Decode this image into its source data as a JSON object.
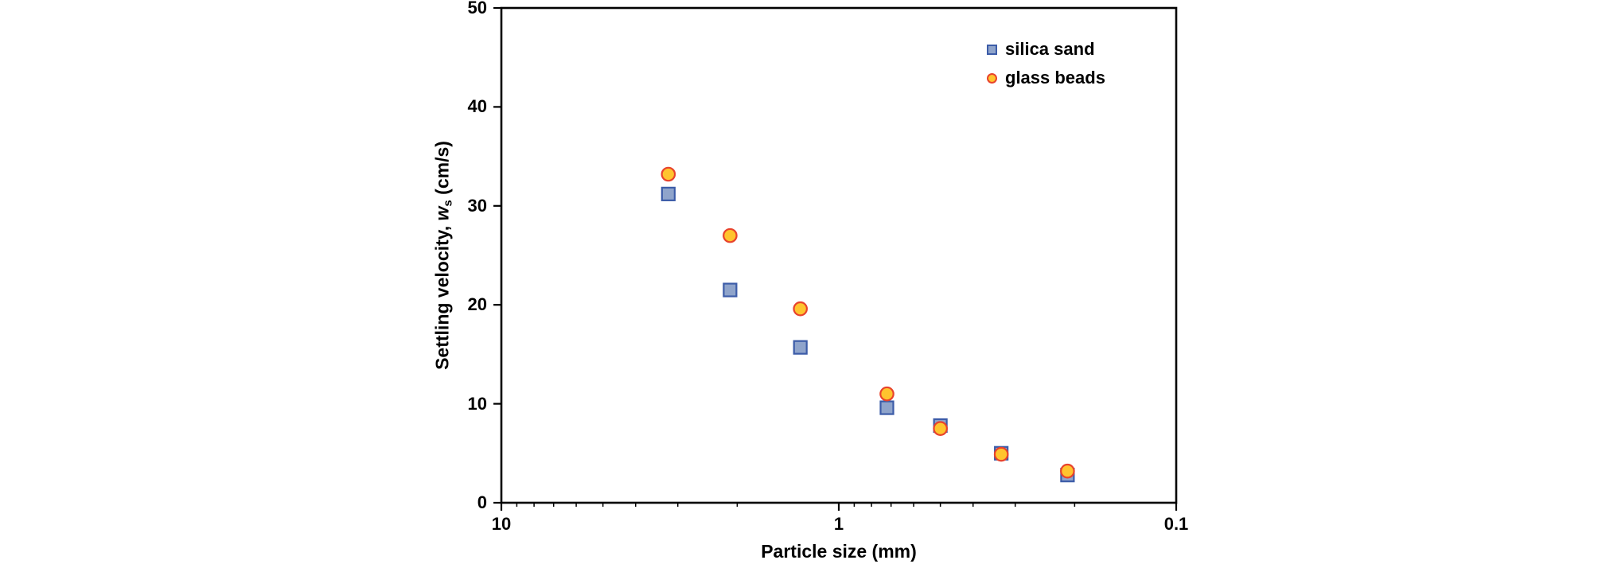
{
  "chart": {
    "ylabel_parts": {
      "pre": "Settling velocity, ",
      "var": "w",
      "sub": "s",
      "post": " (cm/s)"
    }
  },
  "chart_data": {
    "type": "scatter",
    "title": "",
    "xlabel": "Particle size (mm)",
    "ylabel": "Settling velocity, w_s (cm/s)",
    "x_scale": "log",
    "x_axis_reversed": true,
    "xlim": [
      10,
      0.1
    ],
    "ylim": [
      0,
      50
    ],
    "x_ticks": [
      10,
      1,
      0.1
    ],
    "y_ticks": [
      0,
      10,
      20,
      30,
      40,
      50
    ],
    "grid": false,
    "legend_position": "top-right-inside",
    "frame_color": "#000000",
    "series": [
      {
        "name": "silica sand",
        "marker": "square",
        "fill": "#8FA4CB",
        "stroke": "#3C5CA8",
        "x": [
          3.2,
          2.1,
          1.3,
          0.72,
          0.5,
          0.33,
          0.21
        ],
        "y": [
          31.2,
          21.5,
          15.7,
          9.6,
          7.8,
          5.0,
          2.8
        ]
      },
      {
        "name": "glass beads",
        "marker": "circle",
        "fill": "#FFC42E",
        "stroke": "#E8432C",
        "x": [
          3.2,
          2.1,
          1.3,
          0.72,
          0.5,
          0.33,
          0.21
        ],
        "y": [
          33.2,
          27.0,
          19.6,
          11.0,
          7.5,
          4.9,
          3.2
        ]
      }
    ]
  }
}
